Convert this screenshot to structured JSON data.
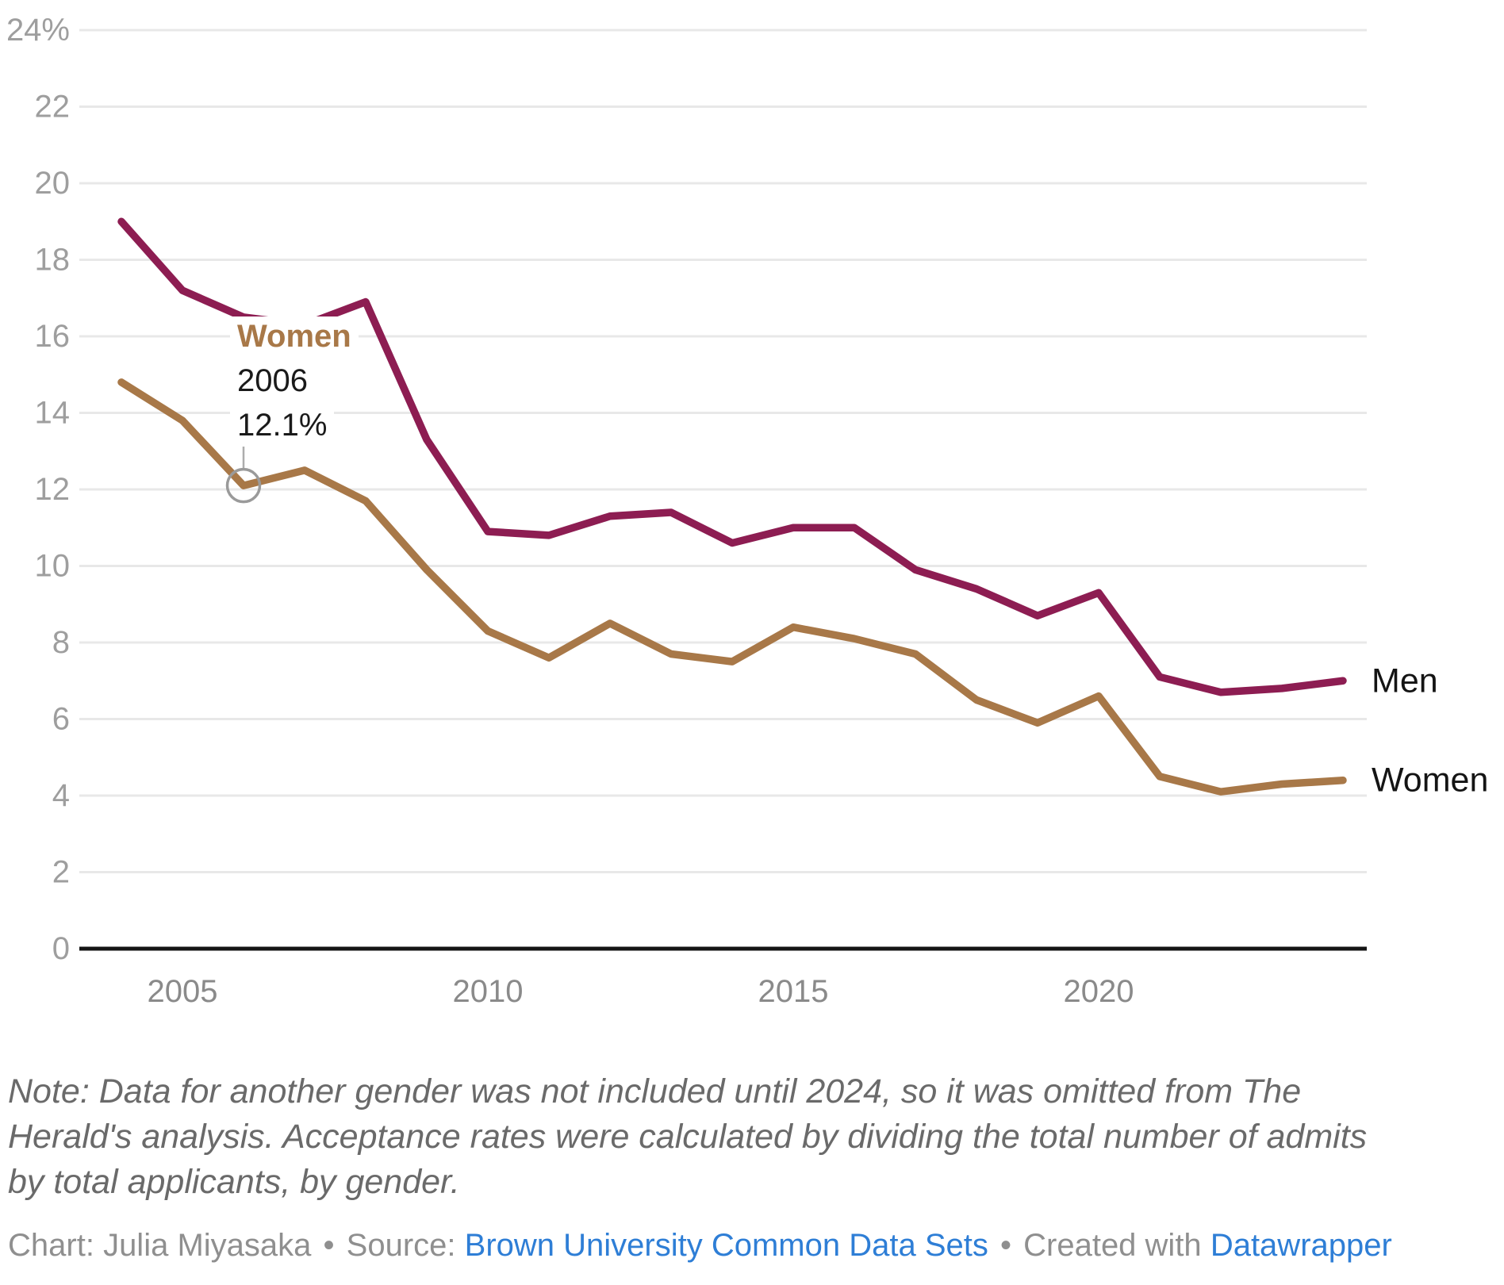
{
  "chart_data": {
    "type": "line",
    "title": "",
    "xlabel": "",
    "ylabel": "",
    "x": [
      2004,
      2005,
      2006,
      2007,
      2008,
      2009,
      2010,
      2011,
      2012,
      2013,
      2014,
      2015,
      2016,
      2017,
      2018,
      2019,
      2020,
      2021,
      2022,
      2023,
      2024
    ],
    "series": [
      {
        "name": "Men",
        "color": "#8D1D52",
        "values": [
          19.0,
          17.2,
          16.5,
          16.3,
          16.9,
          13.3,
          10.9,
          10.8,
          11.3,
          11.4,
          10.6,
          11.0,
          11.0,
          9.9,
          9.4,
          8.7,
          9.3,
          7.1,
          6.7,
          6.8,
          7.0
        ]
      },
      {
        "name": "Women",
        "color": "#A87848",
        "values": [
          14.8,
          13.8,
          12.1,
          12.5,
          11.7,
          9.9,
          8.3,
          7.6,
          8.5,
          7.7,
          7.5,
          8.4,
          8.1,
          7.7,
          6.5,
          5.9,
          6.6,
          4.5,
          4.1,
          4.3,
          4.4
        ]
      }
    ],
    "ylim": [
      0,
      24
    ],
    "xlim": [
      2004,
      2024
    ],
    "grid": true,
    "legend_position": "line-end-labels",
    "y_ticks": [
      {
        "value": 24,
        "label": "24%"
      },
      {
        "value": 22,
        "label": "22"
      },
      {
        "value": 20,
        "label": "20"
      },
      {
        "value": 18,
        "label": "18"
      },
      {
        "value": 16,
        "label": "16"
      },
      {
        "value": 14,
        "label": "14"
      },
      {
        "value": 12,
        "label": "12"
      },
      {
        "value": 10,
        "label": "10"
      },
      {
        "value": 8,
        "label": "8"
      },
      {
        "value": 6,
        "label": "6"
      },
      {
        "value": 4,
        "label": "4"
      },
      {
        "value": 2,
        "label": "2"
      },
      {
        "value": 0,
        "label": "0"
      }
    ],
    "x_ticks": [
      {
        "value": 2005,
        "label": "2005"
      },
      {
        "value": 2010,
        "label": "2010"
      },
      {
        "value": 2015,
        "label": "2015"
      },
      {
        "value": 2020,
        "label": "2020"
      }
    ],
    "annotation": {
      "series_label": "Women",
      "year": 2006,
      "year_label": "2006",
      "value": 12.1,
      "value_label": "12.1%"
    },
    "colors": {
      "men_line": "#8D1D52",
      "women_line": "#A87848",
      "grid": "#E8E8E8",
      "axis": "#141414",
      "y_tick_label": "#9E9E9E",
      "x_tick_label": "#8A8A8A",
      "end_label": "#141414",
      "marker_ring": "#9A9A9A",
      "connector": "#ADADAD"
    }
  },
  "note": {
    "lines": [
      "Note: Data for another gender was not included until 2024, so it was omitted from The",
      "Herald's analysis. Acceptance rates were calculated by dividing the total number of admits",
      "by total applicants, by gender."
    ]
  },
  "footer": {
    "chart_label": "Chart:",
    "author": "Julia Miyasaka",
    "separator": "•",
    "source_label": "Source:",
    "source_link": "Brown University Common Data Sets",
    "separator2": "•",
    "created_label": "Created with",
    "tool_link": "Datawrapper"
  }
}
